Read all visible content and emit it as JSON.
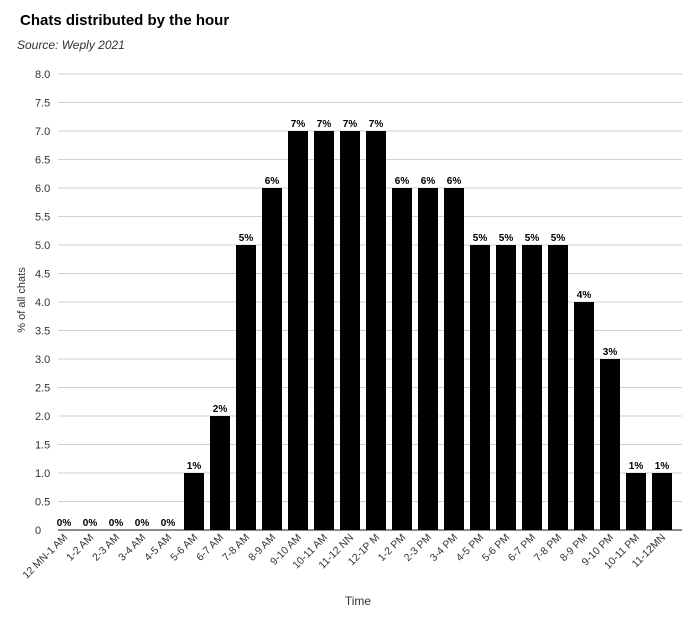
{
  "chart_data": {
    "type": "bar",
    "title": "Chats distributed by the hour",
    "subtitle": "Source: Weply 2021",
    "xlabel": "Time",
    "ylabel": "% of all chats",
    "ylim": [
      0,
      8
    ],
    "yticks": [
      "0",
      "0.5",
      "1.0",
      "1.5",
      "2.0",
      "2.5",
      "3.0",
      "3.5",
      "4.0",
      "4.5",
      "5.0",
      "5.5",
      "6.0",
      "6.5",
      "7.0",
      "7.5",
      "8.0"
    ],
    "grid": true,
    "categories": [
      "12 MN-1 AM",
      "1-2 AM",
      "2-3 AM",
      "3-4 AM",
      "4-5 AM",
      "5-6 AM",
      "6-7 AM",
      "7-8 AM",
      "8-9 AM",
      "9-10 AM",
      "10-11 AM",
      "11-12 NN",
      "12-1P M",
      "1-2 PM",
      "2-3 PM",
      "3-4 PM",
      "4-5 PM",
      "5-6 PM",
      "6-7 PM",
      "7-8 PM",
      "8-9 PM",
      "9-10 PM",
      "10-11 PM",
      "11-12MN"
    ],
    "values": [
      0,
      0,
      0,
      0,
      0,
      1,
      2,
      5,
      6,
      7,
      7,
      7,
      7,
      6,
      6,
      6,
      5,
      5,
      5,
      5,
      4,
      3,
      1,
      1
    ],
    "data_labels": [
      "0%",
      "0%",
      "0%",
      "0%",
      "0%",
      "1%",
      "2%",
      "5%",
      "6%",
      "7%",
      "7%",
      "7%",
      "7%",
      "6%",
      "6%",
      "6%",
      "5%",
      "5%",
      "5%",
      "5%",
      "4%",
      "3%",
      "1%",
      "1%"
    ],
    "colors": {
      "bar": "#000000",
      "grid": "#d0d0d0",
      "axis": "#444444"
    }
  }
}
